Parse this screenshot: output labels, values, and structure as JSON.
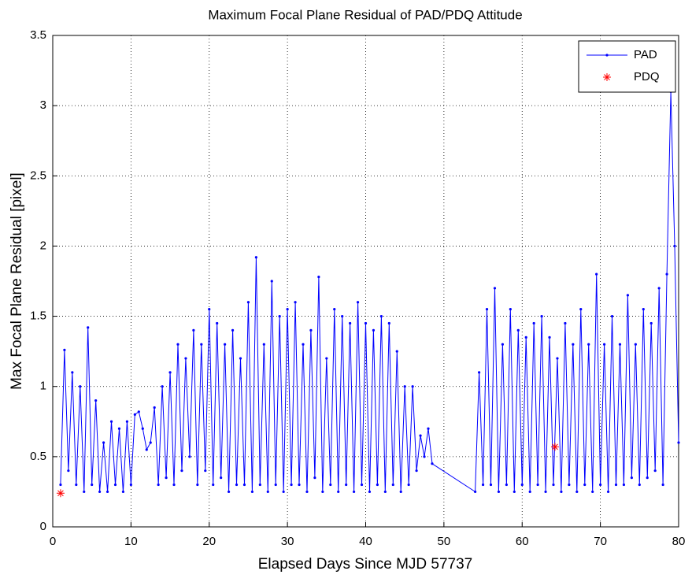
{
  "chart_data": {
    "type": "line",
    "title": "Maximum Focal Plane Residual of PAD/PDQ Attitude",
    "x_label": "Elapsed Days Since MJD 57737",
    "y_label": "Max Focal Plane Residual [pixel]",
    "xlim": [
      0,
      80
    ],
    "ylim": [
      0,
      3.5
    ],
    "xticks": [
      0,
      10,
      20,
      30,
      40,
      50,
      60,
      70,
      80
    ],
    "yticks": [
      0,
      0.5,
      1,
      1.5,
      2,
      2.5,
      3,
      3.5
    ],
    "grid": true,
    "legend": "upper right",
    "series": [
      {
        "name": "PAD",
        "color": "#0000ff",
        "marker": "dot",
        "line": true,
        "x": [
          1,
          1.5,
          2,
          2.5,
          3,
          3.5,
          4,
          4.5,
          5,
          5.5,
          6,
          6.5,
          7,
          7.5,
          8,
          8.5,
          9,
          9.5,
          10,
          10.5,
          11,
          11.5,
          12,
          12.5,
          13,
          13.5,
          14,
          14.5,
          15,
          15.5,
          16,
          16.5,
          17,
          17.5,
          18,
          18.5,
          19,
          19.5,
          20,
          20.5,
          21,
          21.5,
          22,
          22.5,
          23,
          23.5,
          24,
          24.5,
          25,
          25.5,
          26,
          26.5,
          27,
          27.5,
          28,
          28.5,
          29,
          29.5,
          30,
          30.5,
          31,
          31.5,
          32,
          32.5,
          33,
          33.5,
          34,
          34.5,
          35,
          35.5,
          36,
          36.5,
          37,
          37.5,
          38,
          38.5,
          39,
          39.5,
          40,
          40.5,
          41,
          41.5,
          42,
          42.5,
          43,
          43.5,
          44,
          44.5,
          45,
          45.5,
          46,
          46.5,
          47,
          47.5,
          48,
          48.5,
          54,
          54.5,
          55,
          55.5,
          56,
          56.5,
          57,
          57.5,
          58,
          58.5,
          59,
          59.5,
          60,
          60.5,
          61,
          61.5,
          62,
          62.5,
          63,
          63.5,
          64,
          64.5,
          65,
          65.5,
          66,
          66.5,
          67,
          67.5,
          68,
          68.5,
          69,
          69.5,
          70,
          70.5,
          71,
          71.5,
          72,
          72.5,
          73,
          73.5,
          74,
          74.5,
          75,
          75.5,
          76,
          76.5,
          77,
          77.5,
          78,
          78.5,
          79,
          79.5,
          80
        ],
        "values": [
          0.3,
          1.26,
          0.4,
          1.1,
          0.3,
          1.0,
          0.25,
          1.42,
          0.3,
          0.9,
          0.25,
          0.6,
          0.25,
          0.75,
          0.3,
          0.7,
          0.25,
          0.75,
          0.3,
          0.8,
          0.82,
          0.7,
          0.55,
          0.6,
          0.85,
          0.3,
          1.0,
          0.35,
          1.1,
          0.3,
          1.3,
          0.4,
          1.2,
          0.5,
          1.4,
          0.3,
          1.3,
          0.4,
          1.55,
          0.3,
          1.45,
          0.35,
          1.3,
          0.25,
          1.4,
          0.3,
          1.2,
          0.3,
          1.6,
          0.25,
          1.92,
          0.3,
          1.3,
          0.25,
          1.75,
          0.3,
          1.5,
          0.25,
          1.55,
          0.3,
          1.6,
          0.3,
          1.3,
          0.25,
          1.4,
          0.35,
          1.78,
          0.25,
          1.2,
          0.3,
          1.55,
          0.25,
          1.5,
          0.3,
          1.45,
          0.25,
          1.6,
          0.3,
          1.45,
          0.25,
          1.4,
          0.3,
          1.5,
          0.25,
          1.45,
          0.3,
          1.25,
          0.25,
          1.0,
          0.3,
          1.0,
          0.4,
          0.65,
          0.5,
          0.7,
          0.45,
          0.25,
          1.1,
          0.3,
          1.55,
          0.3,
          1.7,
          0.25,
          1.3,
          0.3,
          1.55,
          0.25,
          1.4,
          0.3,
          1.35,
          0.25,
          1.45,
          0.3,
          1.5,
          0.25,
          1.35,
          0.3,
          1.2,
          0.25,
          1.45,
          0.3,
          1.3,
          0.25,
          1.55,
          0.3,
          1.3,
          0.25,
          1.8,
          0.3,
          1.3,
          0.25,
          1.5,
          0.3,
          1.3,
          0.3,
          1.65,
          0.35,
          1.3,
          0.3,
          1.55,
          0.35,
          1.45,
          0.4,
          1.7,
          0.3,
          1.8,
          3.1,
          2.0,
          0.6
        ]
      },
      {
        "name": "PDQ",
        "color": "#ff0000",
        "marker": "star",
        "line": false,
        "x": [
          1,
          64.2
        ],
        "values": [
          0.24,
          0.57
        ]
      }
    ]
  }
}
